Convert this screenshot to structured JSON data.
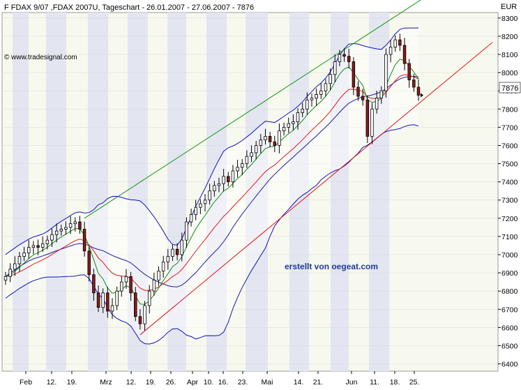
{
  "header": {
    "title": "F FDAX 9/07 ,FDAX 2007U, Tageschart - 26.01.2007 - 27.06.2007 - 7876",
    "watermark": "© www.tradesignal.com",
    "annotation": "erstellt von oegeat.com"
  },
  "chart_data": {
    "type": "candlestick",
    "title": "F FDAX 9/07 ,FDAX 2007U, Tageschart - 26.01.2007 - 27.06.2007 - 7876",
    "currency_label": "EUR",
    "last_price": 7876,
    "last_price_label": "7876",
    "ylim": [
      6360,
      8330
    ],
    "y_ticks": [
      6400,
      6500,
      6600,
      6700,
      6800,
      6900,
      7000,
      7100,
      7200,
      7300,
      7400,
      7500,
      7600,
      7700,
      7800,
      7900,
      8000,
      8100,
      8200,
      8300
    ],
    "x_labels": [
      "Feb",
      "12.",
      "19.",
      "Mrz",
      "12.",
      "19.",
      "26.",
      "Apr",
      "10.",
      "16.",
      "23.",
      "Mai",
      "14.",
      "21.",
      "Jun",
      "11.",
      "18.",
      "25."
    ],
    "close": [
      6880,
      6920,
      6950,
      6990,
      7010,
      7040,
      7050,
      7040,
      7060,
      7080,
      7110,
      7130,
      7140,
      7150,
      7170,
      7180,
      7140,
      7020,
      6890,
      6790,
      6710,
      6790,
      6690,
      6720,
      6800,
      6850,
      6880,
      6790,
      6660,
      6620,
      6720,
      6800,
      6860,
      6910,
      6960,
      6990,
      7030,
      7000,
      7080,
      7180,
      7220,
      7260,
      7280,
      7300,
      7350,
      7380,
      7390,
      7430,
      7400,
      7460,
      7480,
      7500,
      7540,
      7560,
      7600,
      7630,
      7650,
      7620,
      7600,
      7680,
      7700,
      7720,
      7730,
      7780,
      7800,
      7850,
      7860,
      7880,
      7900,
      7940,
      7990,
      8060,
      8100,
      8090,
      8060,
      7920,
      7870,
      7850,
      7650,
      7800,
      7860,
      7900,
      8100,
      8140,
      8180,
      8150,
      8050,
      7960,
      7920,
      7876
    ],
    "volume_heights": [
      0,
      0,
      0,
      0,
      0,
      0,
      0,
      0,
      0,
      0,
      0,
      0,
      0,
      0,
      0,
      0,
      0,
      0,
      0,
      0,
      0,
      0,
      0,
      0,
      0,
      0,
      0,
      0,
      0,
      0,
      0,
      0,
      0,
      0,
      0,
      0,
      0,
      0,
      0,
      0,
      0,
      0,
      0,
      0,
      0,
      0,
      0,
      0,
      0,
      0,
      0,
      0,
      0,
      0,
      0,
      0,
      0,
      0,
      0,
      0,
      0,
      0,
      0,
      0,
      0,
      0,
      0,
      0,
      0,
      0,
      0,
      0,
      0,
      0,
      0,
      0,
      0,
      0,
      0,
      0,
      0,
      0,
      0,
      0,
      0,
      0,
      0,
      0,
      0,
      0
    ]
  }
}
